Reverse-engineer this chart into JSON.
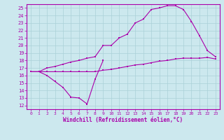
{
  "xlabel": "Windchill (Refroidissement éolien,°C)",
  "bg_color": "#cce8ee",
  "line_color": "#aa00aa",
  "xlim": [
    -0.5,
    23.5
  ],
  "ylim": [
    11.5,
    25.5
  ],
  "xticks": [
    0,
    1,
    2,
    3,
    4,
    5,
    6,
    7,
    8,
    9,
    10,
    11,
    12,
    13,
    14,
    15,
    16,
    17,
    18,
    19,
    20,
    21,
    22,
    23
  ],
  "yticks": [
    12,
    13,
    14,
    15,
    16,
    17,
    18,
    19,
    20,
    21,
    22,
    23,
    24,
    25
  ],
  "line1_x": [
    0,
    1,
    2,
    3,
    4,
    5,
    6,
    7,
    8,
    9
  ],
  "line1_y": [
    16.5,
    16.5,
    16.0,
    15.2,
    14.4,
    13.1,
    13.0,
    12.2,
    15.5,
    18.0
  ],
  "line2_x": [
    0,
    1,
    2,
    3,
    4,
    5,
    6,
    7,
    8,
    9,
    10,
    11,
    12,
    13,
    14,
    15,
    16,
    17,
    18,
    19,
    20,
    21,
    22,
    23
  ],
  "line2_y": [
    16.5,
    16.5,
    17.0,
    17.2,
    17.5,
    17.8,
    18.0,
    18.3,
    18.5,
    20.0,
    20.0,
    21.0,
    21.5,
    23.0,
    23.5,
    24.8,
    25.0,
    25.3,
    25.3,
    24.8,
    23.2,
    21.3,
    19.3,
    18.5
  ],
  "line3_x": [
    0,
    1,
    2,
    3,
    4,
    5,
    6,
    7,
    8,
    9,
    10,
    11,
    12,
    13,
    14,
    15,
    16,
    17,
    18,
    19,
    20,
    21,
    22,
    23
  ],
  "line3_y": [
    16.5,
    16.5,
    16.5,
    16.5,
    16.5,
    16.5,
    16.5,
    16.5,
    16.5,
    16.7,
    16.8,
    17.0,
    17.2,
    17.4,
    17.5,
    17.7,
    17.9,
    18.0,
    18.2,
    18.3,
    18.3,
    18.3,
    18.4,
    18.2
  ]
}
